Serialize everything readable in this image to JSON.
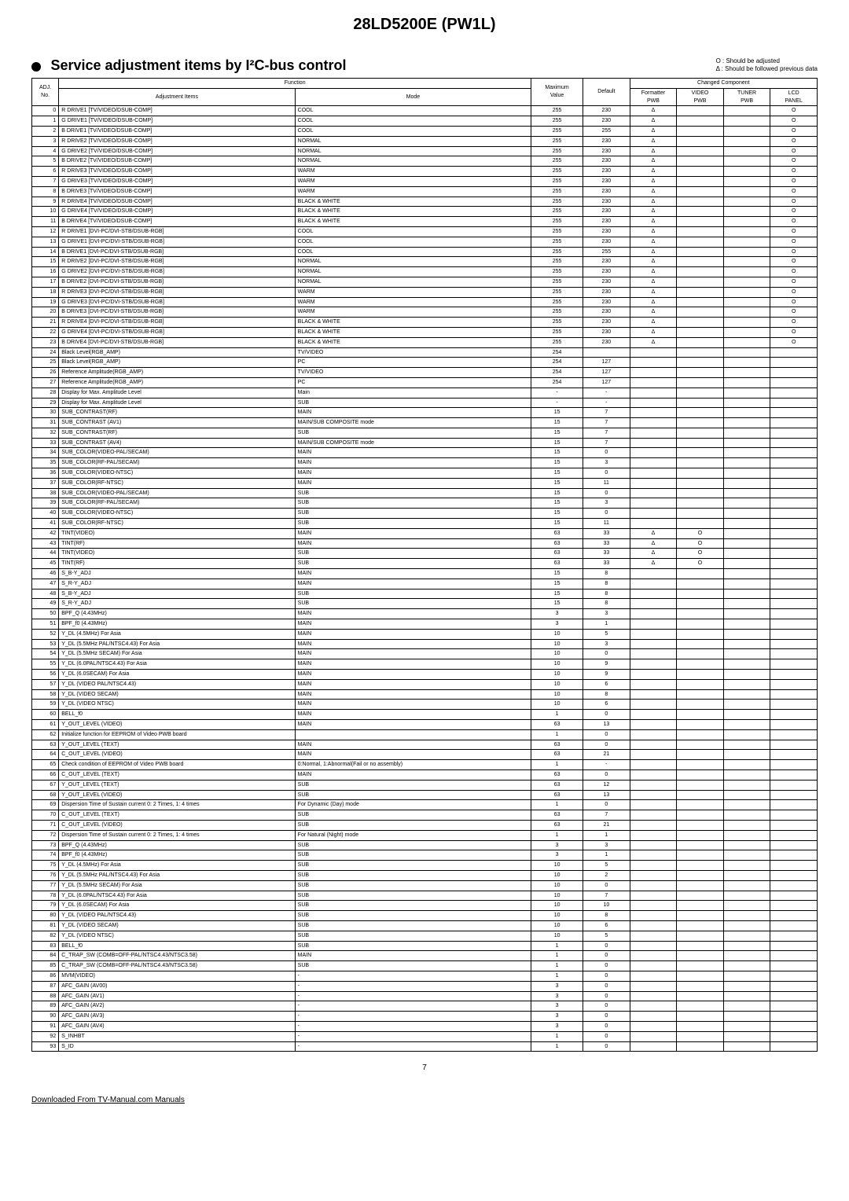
{
  "header": {
    "title": "28LD5200E (PW1L)",
    "section_title": "Service adjustment items by  I²C-bus control",
    "legend1": "O : Should be adjusted",
    "legend2": "Δ : Should be followed previous data"
  },
  "table_headers": {
    "function": "Function",
    "adj_no": "ADJ.\nNo.",
    "items": "Adjustment Items",
    "mode": "Mode",
    "max": "Maximum\nValue",
    "default": "Default",
    "changed": "Changed Component",
    "formatter": "Formatter\nPWB",
    "video_pwb": "VIDEO\nPWB",
    "tuner_pwb": "TUNER\nPWB",
    "lcd_panel": "LCD\nPANEL"
  },
  "rows": [
    {
      "n": "0",
      "i": "R DRIVE1 [TV/VIDEO/DSUB-COMP]",
      "m": "COOL",
      "mx": "255",
      "d": "230",
      "f": "Δ",
      "v": "",
      "t": "",
      "l": "O"
    },
    {
      "n": "1",
      "i": "G DRIVE1 [TV/VIDEO/DSUB-COMP]",
      "m": "COOL",
      "mx": "255",
      "d": "230",
      "f": "Δ",
      "v": "",
      "t": "",
      "l": "O"
    },
    {
      "n": "2",
      "i": "B DRIVE1 [TV/VIDEO/DSUB-COMP]",
      "m": "COOL",
      "mx": "255",
      "d": "255",
      "f": "Δ",
      "v": "",
      "t": "",
      "l": "O"
    },
    {
      "n": "3",
      "i": "R DRIVE2 [TV/VIDEO/DSUB-COMP]",
      "m": "NORMAL",
      "mx": "255",
      "d": "230",
      "f": "Δ",
      "v": "",
      "t": "",
      "l": "O"
    },
    {
      "n": "4",
      "i": "G DRIVE2 [TV/VIDEO/DSUB-COMP]",
      "m": "NORMAL",
      "mx": "255",
      "d": "230",
      "f": "Δ",
      "v": "",
      "t": "",
      "l": "O"
    },
    {
      "n": "5",
      "i": "B DRIVE2 [TV/VIDEO/DSUB-COMP]",
      "m": "NORMAL",
      "mx": "255",
      "d": "230",
      "f": "Δ",
      "v": "",
      "t": "",
      "l": "O"
    },
    {
      "n": "6",
      "i": "R DRIVE3 [TV/VIDEO/DSUB-COMP]",
      "m": "WARM",
      "mx": "255",
      "d": "230",
      "f": "Δ",
      "v": "",
      "t": "",
      "l": "O"
    },
    {
      "n": "7",
      "i": "G DRIVE3 [TV/VIDEO/DSUB-COMP]",
      "m": "WARM",
      "mx": "255",
      "d": "230",
      "f": "Δ",
      "v": "",
      "t": "",
      "l": "O"
    },
    {
      "n": "8",
      "i": "B DRIVE3 [TV/VIDEO/DSUB-COMP]",
      "m": "WARM",
      "mx": "255",
      "d": "230",
      "f": "Δ",
      "v": "",
      "t": "",
      "l": "O"
    },
    {
      "n": "9",
      "i": "R DRIVE4 [TV/VIDEO/DSUB-COMP]",
      "m": "BLACK & WHITE",
      "mx": "255",
      "d": "230",
      "f": "Δ",
      "v": "",
      "t": "",
      "l": "O"
    },
    {
      "n": "10",
      "i": "G DRIVE4 [TV/VIDEO/DSUB-COMP]",
      "m": "BLACK & WHITE",
      "mx": "255",
      "d": "230",
      "f": "Δ",
      "v": "",
      "t": "",
      "l": "O"
    },
    {
      "n": "11",
      "i": "B DRIVE4 [TV/VIDEO/DSUB-COMP]",
      "m": "BLACK & WHITE",
      "mx": "255",
      "d": "230",
      "f": "Δ",
      "v": "",
      "t": "",
      "l": "O"
    },
    {
      "n": "12",
      "i": "R DRIVE1 [DVI-PC/DVI-STB/DSUB-RGB]",
      "m": "COOL",
      "mx": "255",
      "d": "230",
      "f": "Δ",
      "v": "",
      "t": "",
      "l": "O"
    },
    {
      "n": "13",
      "i": "G DRIVE1 [DVI-PC/DVI-STB/DSUB-RGB]",
      "m": "COOL",
      "mx": "255",
      "d": "230",
      "f": "Δ",
      "v": "",
      "t": "",
      "l": "O"
    },
    {
      "n": "14",
      "i": "B DRIVE1 [DVI-PC/DVI-STB/DSUB-RGB]",
      "m": "COOL",
      "mx": "255",
      "d": "255",
      "f": "Δ",
      "v": "",
      "t": "",
      "l": "O"
    },
    {
      "n": "15",
      "i": "R DRIVE2 [DVI-PC/DVI-STB/DSUB-RGB]",
      "m": "NORMAL",
      "mx": "255",
      "d": "230",
      "f": "Δ",
      "v": "",
      "t": "",
      "l": "O"
    },
    {
      "n": "16",
      "i": "G DRIVE2 [DVI-PC/DVI-STB/DSUB-RGB]",
      "m": "NORMAL",
      "mx": "255",
      "d": "230",
      "f": "Δ",
      "v": "",
      "t": "",
      "l": "O"
    },
    {
      "n": "17",
      "i": "B DRIVE2 [DVI-PC/DVI-STB/DSUB-RGB]",
      "m": "NORMAL",
      "mx": "255",
      "d": "230",
      "f": "Δ",
      "v": "",
      "t": "",
      "l": "O"
    },
    {
      "n": "18",
      "i": "R DRIVE3 [DVI-PC/DVI-STB/DSUB-RGB]",
      "m": "WARM",
      "mx": "255",
      "d": "230",
      "f": "Δ",
      "v": "",
      "t": "",
      "l": "O"
    },
    {
      "n": "19",
      "i": "G DRIVE3 [DVI-PC/DVI-STB/DSUB-RGB]",
      "m": "WARM",
      "mx": "255",
      "d": "230",
      "f": "Δ",
      "v": "",
      "t": "",
      "l": "O"
    },
    {
      "n": "20",
      "i": "B DRIVE3 [DVI-PC/DVI-STB/DSUB-RGB]",
      "m": "WARM",
      "mx": "255",
      "d": "230",
      "f": "Δ",
      "v": "",
      "t": "",
      "l": "O"
    },
    {
      "n": "21",
      "i": "R DRIVE4 [DVI-PC/DVI-STB/DSUB-RGB]",
      "m": "BLACK & WHITE",
      "mx": "255",
      "d": "230",
      "f": "Δ",
      "v": "",
      "t": "",
      "l": "O"
    },
    {
      "n": "22",
      "i": "G DRIVE4 [DVI-PC/DVI-STB/DSUB-RGB]",
      "m": "BLACK & WHITE",
      "mx": "255",
      "d": "230",
      "f": "Δ",
      "v": "",
      "t": "",
      "l": "O"
    },
    {
      "n": "23",
      "i": "B DRIVE4 [DVI-PC/DVI-STB/DSUB-RGB]",
      "m": "BLACK & WHITE",
      "mx": "255",
      "d": "230",
      "f": "Δ",
      "v": "",
      "t": "",
      "l": "O"
    },
    {
      "n": "24",
      "i": "Black Level(RGB_AMP)",
      "m": "TV/VIDEO",
      "mx": "254",
      "d": "",
      "f": "",
      "v": "",
      "t": "",
      "l": ""
    },
    {
      "n": "25",
      "i": "Black Level(RGB_AMP)",
      "m": "PC",
      "mx": "254",
      "d": "127",
      "f": "",
      "v": "",
      "t": "",
      "l": ""
    },
    {
      "n": "26",
      "i": "Reference Amplitude(RGB_AMP)",
      "m": "TV/VIDEO",
      "mx": "254",
      "d": "127",
      "f": "",
      "v": "",
      "t": "",
      "l": ""
    },
    {
      "n": "27",
      "i": "Reference Amplitude(RGB_AMP)",
      "m": "PC",
      "mx": "254",
      "d": "127",
      "f": "",
      "v": "",
      "t": "",
      "l": ""
    },
    {
      "n": "28",
      "i": "Display for Max. Amplitude Level",
      "m": "Main",
      "mx": "-",
      "d": "-",
      "f": "",
      "v": "",
      "t": "",
      "l": ""
    },
    {
      "n": "29",
      "i": "Display for Max. Amplitude Level",
      "m": "SUB",
      "mx": "-",
      "d": "-",
      "f": "",
      "v": "",
      "t": "",
      "l": ""
    },
    {
      "n": "30",
      "i": "SUB_CONTRAST(RF)",
      "m": "MAIN",
      "mx": "15",
      "d": "7",
      "f": "",
      "v": "",
      "t": "",
      "l": ""
    },
    {
      "n": "31",
      "i": "SUB_CONTRAST (AV1)",
      "m": "MAIN/SUB COMPOSITE mode",
      "mx": "15",
      "d": "7",
      "f": "",
      "v": "",
      "t": "",
      "l": ""
    },
    {
      "n": "32",
      "i": "SUB_CONTRAST(RF)",
      "m": "SUB",
      "mx": "15",
      "d": "7",
      "f": "",
      "v": "",
      "t": "",
      "l": ""
    },
    {
      "n": "33",
      "i": "SUB_CONTRAST (AV4)",
      "m": "MAIN/SUB COMPOSITE mode",
      "mx": "15",
      "d": "7",
      "f": "",
      "v": "",
      "t": "",
      "l": ""
    },
    {
      "n": "34",
      "i": "SUB_COLOR(VIDEO-PAL/SECAM)",
      "m": "MAIN",
      "mx": "15",
      "d": "0",
      "f": "",
      "v": "",
      "t": "",
      "l": ""
    },
    {
      "n": "35",
      "i": "SUB_COLOR(RF-PAL/SECAM)",
      "m": "MAIN",
      "mx": "15",
      "d": "3",
      "f": "",
      "v": "",
      "t": "",
      "l": ""
    },
    {
      "n": "36",
      "i": "SUB_COLOR(VIDEO-NTSC)",
      "m": "MAIN",
      "mx": "15",
      "d": "0",
      "f": "",
      "v": "",
      "t": "",
      "l": ""
    },
    {
      "n": "37",
      "i": "SUB_COLOR(RF-NTSC)",
      "m": "MAIN",
      "mx": "15",
      "d": "11",
      "f": "",
      "v": "",
      "t": "",
      "l": ""
    },
    {
      "n": "38",
      "i": "SUB_COLOR(VIDEO-PAL/SECAM)",
      "m": "SUB",
      "mx": "15",
      "d": "0",
      "f": "",
      "v": "",
      "t": "",
      "l": ""
    },
    {
      "n": "39",
      "i": "SUB_COLOR(RF-PAL/SECAM)",
      "m": "SUB",
      "mx": "15",
      "d": "3",
      "f": "",
      "v": "",
      "t": "",
      "l": ""
    },
    {
      "n": "40",
      "i": "SUB_COLOR(VIDEO-NTSC)",
      "m": "SUB",
      "mx": "15",
      "d": "0",
      "f": "",
      "v": "",
      "t": "",
      "l": ""
    },
    {
      "n": "41",
      "i": "SUB_COLOR(RF-NTSC)",
      "m": "SUB",
      "mx": "15",
      "d": "11",
      "f": "",
      "v": "",
      "t": "",
      "l": ""
    },
    {
      "n": "42",
      "i": "TINT(VIDEO)",
      "m": "MAIN",
      "mx": "63",
      "d": "33",
      "f": "Δ",
      "v": "O",
      "t": "",
      "l": ""
    },
    {
      "n": "43",
      "i": "TINT(RF)",
      "m": "MAIN",
      "mx": "63",
      "d": "33",
      "f": "Δ",
      "v": "O",
      "t": "",
      "l": ""
    },
    {
      "n": "44",
      "i": "TINT(VIDEO)",
      "m": "SUB",
      "mx": "63",
      "d": "33",
      "f": "Δ",
      "v": "O",
      "t": "",
      "l": ""
    },
    {
      "n": "45",
      "i": "TINT(RF)",
      "m": "SUB",
      "mx": "63",
      "d": "33",
      "f": "Δ",
      "v": "O",
      "t": "",
      "l": ""
    },
    {
      "n": "46",
      "i": "S_B-Y_ADJ",
      "m": "MAIN",
      "mx": "15",
      "d": "8",
      "f": "",
      "v": "",
      "t": "",
      "l": ""
    },
    {
      "n": "47",
      "i": "S_R-Y_ADJ",
      "m": "MAIN",
      "mx": "15",
      "d": "8",
      "f": "",
      "v": "",
      "t": "",
      "l": ""
    },
    {
      "n": "48",
      "i": "S_B-Y_ADJ",
      "m": "SUB",
      "mx": "15",
      "d": "8",
      "f": "",
      "v": "",
      "t": "",
      "l": ""
    },
    {
      "n": "49",
      "i": "S_R-Y_ADJ",
      "m": "SUB",
      "mx": "15",
      "d": "8",
      "f": "",
      "v": "",
      "t": "",
      "l": ""
    },
    {
      "n": "50",
      "i": "BPF_Q (4.43MHz)",
      "m": "MAIN",
      "mx": "3",
      "d": "3",
      "f": "",
      "v": "",
      "t": "",
      "l": ""
    },
    {
      "n": "51",
      "i": "BPF_f0 (4.43MHz)",
      "m": "MAIN",
      "mx": "3",
      "d": "1",
      "f": "",
      "v": "",
      "t": "",
      "l": ""
    },
    {
      "n": "52",
      "i": "Y_DL (4.5MHz) For Asia",
      "m": "MAIN",
      "mx": "10",
      "d": "5",
      "f": "",
      "v": "",
      "t": "",
      "l": ""
    },
    {
      "n": "53",
      "i": "Y_DL (5.5MHz PAL/NTSC4.43) For Asia",
      "m": "MAIN",
      "mx": "10",
      "d": "3",
      "f": "",
      "v": "",
      "t": "",
      "l": ""
    },
    {
      "n": "54",
      "i": "Y_DL (5.5MHz SECAM) For Asia",
      "m": "MAIN",
      "mx": "10",
      "d": "0",
      "f": "",
      "v": "",
      "t": "",
      "l": ""
    },
    {
      "n": "55",
      "i": "Y_DL (6.0PAL/NTSC4.43) For Asia",
      "m": "MAIN",
      "mx": "10",
      "d": "9",
      "f": "",
      "v": "",
      "t": "",
      "l": ""
    },
    {
      "n": "56",
      "i": "Y_DL (6.0SECAM) For Asia",
      "m": "MAIN",
      "mx": "10",
      "d": "9",
      "f": "",
      "v": "",
      "t": "",
      "l": ""
    },
    {
      "n": "57",
      "i": "Y_DL (VIDEO PAL/NTSC4.43)",
      "m": "MAIN",
      "mx": "10",
      "d": "6",
      "f": "",
      "v": "",
      "t": "",
      "l": ""
    },
    {
      "n": "58",
      "i": "Y_DL (VIDEO SECAM)",
      "m": "MAIN",
      "mx": "10",
      "d": "8",
      "f": "",
      "v": "",
      "t": "",
      "l": ""
    },
    {
      "n": "59",
      "i": "Y_DL (VIDEO NTSC)",
      "m": "MAIN",
      "mx": "10",
      "d": "6",
      "f": "",
      "v": "",
      "t": "",
      "l": ""
    },
    {
      "n": "60",
      "i": "BELL_f0",
      "m": "MAIN",
      "mx": "1",
      "d": "0",
      "f": "",
      "v": "",
      "t": "",
      "l": ""
    },
    {
      "n": "61",
      "i": "Y_OUT_LEVEL (VIDEO)",
      "m": "MAIN",
      "mx": "63",
      "d": "13",
      "f": "",
      "v": "",
      "t": "",
      "l": ""
    },
    {
      "n": "62",
      "i": "Initialize function for EEPROM of Video PWB board",
      "m": "",
      "mx": "1",
      "d": "0",
      "f": "",
      "v": "",
      "t": "",
      "l": ""
    },
    {
      "n": "63",
      "i": "Y_OUT_LEVEL (TEXT)",
      "m": "MAIN",
      "mx": "63",
      "d": "0",
      "f": "",
      "v": "",
      "t": "",
      "l": ""
    },
    {
      "n": "64",
      "i": "C_OUT_LEVEL (VIDEO)",
      "m": "MAIN",
      "mx": "63",
      "d": "21",
      "f": "",
      "v": "",
      "t": "",
      "l": ""
    },
    {
      "n": "65",
      "i": "Check condition of EEPROM of Video PWB board",
      "m": "0:Normal, 1:Abnormal(Fail or no assembly)",
      "mx": "1",
      "d": "-",
      "f": "",
      "v": "",
      "t": "",
      "l": ""
    },
    {
      "n": "66",
      "i": "C_OUT_LEVEL (TEXT)",
      "m": "MAIN",
      "mx": "63",
      "d": "0",
      "f": "",
      "v": "",
      "t": "",
      "l": ""
    },
    {
      "n": "67",
      "i": "Y_OUT_LEVEL (TEXT)",
      "m": "SUB",
      "mx": "63",
      "d": "12",
      "f": "",
      "v": "",
      "t": "",
      "l": ""
    },
    {
      "n": "68",
      "i": "Y_OUT_LEVEL (VIDEO)",
      "m": "SUB",
      "mx": "63",
      "d": "13",
      "f": "",
      "v": "",
      "t": "",
      "l": ""
    },
    {
      "n": "69",
      "i": "Dispersion Time of Sustain current 0: 2 Times, 1: 4 times",
      "m": "For Dynamic (Day) mode",
      "mx": "1",
      "d": "0",
      "f": "",
      "v": "",
      "t": "",
      "l": ""
    },
    {
      "n": "70",
      "i": "C_OUT_LEVEL (TEXT)",
      "m": "SUB",
      "mx": "63",
      "d": "7",
      "f": "",
      "v": "",
      "t": "",
      "l": ""
    },
    {
      "n": "71",
      "i": "C_OUT_LEVEL (VIDEO)",
      "m": "SUB",
      "mx": "63",
      "d": "21",
      "f": "",
      "v": "",
      "t": "",
      "l": ""
    },
    {
      "n": "72",
      "i": "Dispersion Time of Sustain current 0: 2 Times, 1: 4 times",
      "m": "For Natural (Night) mode",
      "mx": "1",
      "d": "1",
      "f": "",
      "v": "",
      "t": "",
      "l": ""
    },
    {
      "n": "73",
      "i": "BPF_Q (4.43MHz)",
      "m": "SUB",
      "mx": "3",
      "d": "3",
      "f": "",
      "v": "",
      "t": "",
      "l": ""
    },
    {
      "n": "74",
      "i": "BPF_f0 (4.43MHz)",
      "m": "SUB",
      "mx": "3",
      "d": "1",
      "f": "",
      "v": "",
      "t": "",
      "l": ""
    },
    {
      "n": "75",
      "i": "Y_DL (4.5MHz) For Asia",
      "m": "SUB",
      "mx": "10",
      "d": "5",
      "f": "",
      "v": "",
      "t": "",
      "l": ""
    },
    {
      "n": "76",
      "i": "Y_DL (5.5MHz PAL/NTSC4.43) For Asia",
      "m": "SUB",
      "mx": "10",
      "d": "2",
      "f": "",
      "v": "",
      "t": "",
      "l": ""
    },
    {
      "n": "77",
      "i": "Y_DL (5.5MHz SECAM) For Asia",
      "m": "SUB",
      "mx": "10",
      "d": "0",
      "f": "",
      "v": "",
      "t": "",
      "l": ""
    },
    {
      "n": "78",
      "i": "Y_DL (6.0PAL/NTSC4.43) For Asia",
      "m": "SUB",
      "mx": "10",
      "d": "7",
      "f": "",
      "v": "",
      "t": "",
      "l": ""
    },
    {
      "n": "79",
      "i": "Y_DL (6.0SECAM) For Asia",
      "m": "SUB",
      "mx": "10",
      "d": "10",
      "f": "",
      "v": "",
      "t": "",
      "l": ""
    },
    {
      "n": "80",
      "i": "Y_DL (VIDEO PAL/NTSC4.43)",
      "m": "SUB",
      "mx": "10",
      "d": "8",
      "f": "",
      "v": "",
      "t": "",
      "l": ""
    },
    {
      "n": "81",
      "i": "Y_DL (VIDEO SECAM)",
      "m": "SUB",
      "mx": "10",
      "d": "6",
      "f": "",
      "v": "",
      "t": "",
      "l": ""
    },
    {
      "n": "82",
      "i": "Y_DL (VIDEO NTSC)",
      "m": "SUB",
      "mx": "10",
      "d": "5",
      "f": "",
      "v": "",
      "t": "",
      "l": ""
    },
    {
      "n": "83",
      "i": "BELL_f0",
      "m": "SUB",
      "mx": "1",
      "d": "0",
      "f": "",
      "v": "",
      "t": "",
      "l": ""
    },
    {
      "n": "84",
      "i": "C_TRAP_SW (COMB=OFF-PAL/NTSC4.43/NTSC3.58)",
      "m": "MAIN",
      "mx": "1",
      "d": "0",
      "f": "",
      "v": "",
      "t": "",
      "l": ""
    },
    {
      "n": "85",
      "i": "C_TRAP_SW (COMB=OFF-PAL/NTSC4.43/NTSC3.58)",
      "m": "SUB",
      "mx": "1",
      "d": "0",
      "f": "",
      "v": "",
      "t": "",
      "l": ""
    },
    {
      "n": "86",
      "i": "MVM(VIDEO)",
      "m": "-",
      "mx": "1",
      "d": "0",
      "f": "",
      "v": "",
      "t": "",
      "l": ""
    },
    {
      "n": "87",
      "i": "AFC_GAIN (AV00)",
      "m": "-",
      "mx": "3",
      "d": "0",
      "f": "",
      "v": "",
      "t": "",
      "l": ""
    },
    {
      "n": "88",
      "i": "AFC_GAIN (AV1)",
      "m": "-",
      "mx": "3",
      "d": "0",
      "f": "",
      "v": "",
      "t": "",
      "l": ""
    },
    {
      "n": "89",
      "i": "AFC_GAIN (AV2)",
      "m": "-",
      "mx": "3",
      "d": "0",
      "f": "",
      "v": "",
      "t": "",
      "l": ""
    },
    {
      "n": "90",
      "i": "AFC_GAIN (AV3)",
      "m": "-",
      "mx": "3",
      "d": "0",
      "f": "",
      "v": "",
      "t": "",
      "l": ""
    },
    {
      "n": "91",
      "i": "AFC_GAIN (AV4)",
      "m": "-",
      "mx": "3",
      "d": "0",
      "f": "",
      "v": "",
      "t": "",
      "l": ""
    },
    {
      "n": "92",
      "i": "S_INHBT",
      "m": "-",
      "mx": "1",
      "d": "0",
      "f": "",
      "v": "",
      "t": "",
      "l": ""
    },
    {
      "n": "93",
      "i": "S_ID",
      "m": "-",
      "mx": "1",
      "d": "0",
      "f": "",
      "v": "",
      "t": "",
      "l": ""
    }
  ],
  "page_number": "7",
  "footer_link": "Downloaded From TV-Manual.com Manuals"
}
